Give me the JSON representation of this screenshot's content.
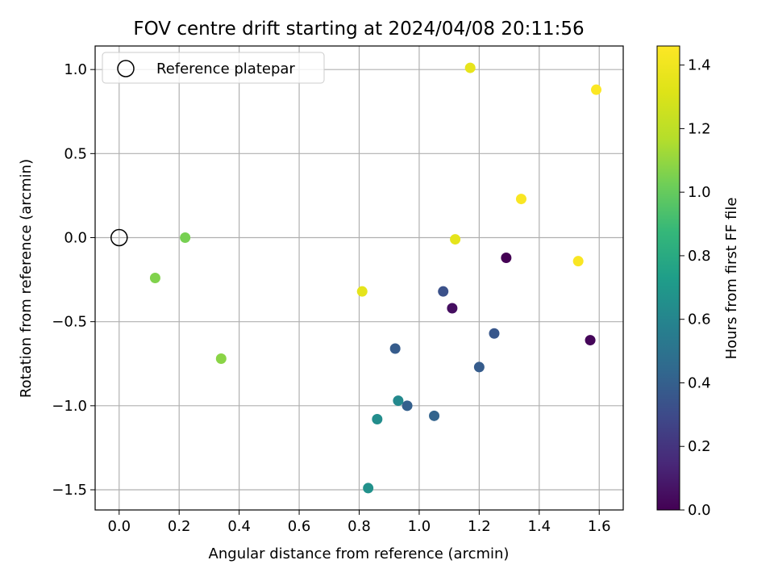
{
  "chart_data": {
    "type": "scatter",
    "title": "FOV centre drift starting at 2024/04/08 20:11:56",
    "xlabel": "Angular distance from reference (arcmin)",
    "ylabel": "Rotation from reference (arcmin)",
    "xlim": [
      -0.08,
      1.68
    ],
    "ylim": [
      -1.62,
      1.14
    ],
    "x_ticks": [
      0.0,
      0.2,
      0.4,
      0.6,
      0.8,
      1.0,
      1.2,
      1.4,
      1.6
    ],
    "x_tick_labels": [
      "0.0",
      "0.2",
      "0.4",
      "0.6",
      "0.8",
      "1.0",
      "1.2",
      "1.4",
      "1.6"
    ],
    "y_ticks": [
      1.0,
      0.5,
      0.0,
      -0.5,
      -1.0,
      -1.5
    ],
    "y_tick_labels": [
      "1.0",
      "0.5",
      "0.0",
      "−0.5",
      "−1.0",
      "−1.5"
    ],
    "grid": true,
    "legend": {
      "position": "top-left",
      "entries": [
        "Reference platepar"
      ]
    },
    "reference_point": {
      "x": 0.0,
      "y": 0.0
    },
    "colorbar": {
      "label": "Hours from first FF file",
      "range": [
        0.0,
        1.46
      ],
      "ticks": [
        0.0,
        0.2,
        0.4,
        0.6,
        0.8,
        1.0,
        1.2,
        1.4
      ],
      "tick_labels": [
        "0.0",
        "0.2",
        "0.4",
        "0.6",
        "0.8",
        "1.0",
        "1.2",
        "1.4"
      ],
      "colormap": "viridis"
    },
    "series": [
      {
        "points": [
          {
            "x": 1.29,
            "y": -0.12,
            "hours": 0.0
          },
          {
            "x": 1.57,
            "y": -0.61,
            "hours": 0.02
          },
          {
            "x": 1.11,
            "y": -0.42,
            "hours": 0.05
          },
          {
            "x": 1.08,
            "y": -0.32,
            "hours": 0.33
          },
          {
            "x": 1.25,
            "y": -0.57,
            "hours": 0.36
          },
          {
            "x": 1.2,
            "y": -0.77,
            "hours": 0.38
          },
          {
            "x": 0.92,
            "y": -0.66,
            "hours": 0.38
          },
          {
            "x": 0.96,
            "y": -1.0,
            "hours": 0.4
          },
          {
            "x": 1.05,
            "y": -1.06,
            "hours": 0.42
          },
          {
            "x": 0.93,
            "y": -0.97,
            "hours": 0.62
          },
          {
            "x": 0.86,
            "y": -1.08,
            "hours": 0.64
          },
          {
            "x": 0.83,
            "y": -1.49,
            "hours": 0.66
          },
          {
            "x": 0.22,
            "y": 0.0,
            "hours": 1.04
          },
          {
            "x": 0.12,
            "y": -0.24,
            "hours": 1.06
          },
          {
            "x": 0.34,
            "y": -0.72,
            "hours": 1.08
          },
          {
            "x": 0.81,
            "y": -0.32,
            "hours": 1.35
          },
          {
            "x": 1.12,
            "y": -0.01,
            "hours": 1.35
          },
          {
            "x": 1.17,
            "y": 1.01,
            "hours": 1.36
          },
          {
            "x": 1.34,
            "y": 0.23,
            "hours": 1.44
          },
          {
            "x": 1.53,
            "y": -0.14,
            "hours": 1.44
          },
          {
            "x": 1.59,
            "y": 0.88,
            "hours": 1.45
          }
        ]
      }
    ]
  }
}
